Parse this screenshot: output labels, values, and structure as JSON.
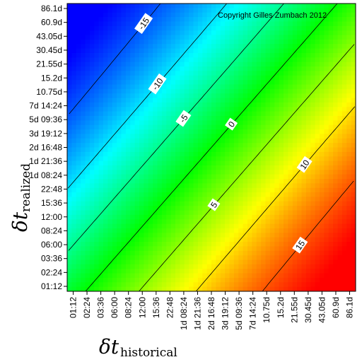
{
  "chart_data": {
    "type": "heatmap",
    "title": "",
    "copyright": "Copyright Gilles Zumbach 2012",
    "xlabel": {
      "symbol": "δt",
      "subscript": "historical"
    },
    "ylabel": {
      "symbol": "δt",
      "subscript": "realized"
    },
    "x_ticks": [
      "01:12",
      "02:24",
      "03:36",
      "06:00",
      "08:24",
      "12:00",
      "15:36",
      "22:48",
      "1d 08:24",
      "1d 21:36",
      "2d 16:48",
      "3d 19:12",
      "5d 09:36",
      "7d 14:24",
      "10.75d",
      "15.2d",
      "21.55d",
      "30.45d",
      "43.05d",
      "60.9d",
      "86.1d"
    ],
    "y_ticks": [
      "01:12",
      "02:24",
      "03:36",
      "06:00",
      "08:24",
      "12:00",
      "15:36",
      "22:48",
      "1d 08:24",
      "1d 21:36",
      "2d 16:48",
      "3d 19:12",
      "5d 09:36",
      "7d 14:24",
      "10.75d",
      "15.2d",
      "21.55d",
      "30.45d",
      "43.05d",
      "60.9d",
      "86.1d"
    ],
    "value_range": [
      -18,
      18
    ],
    "contour_levels": [
      -15,
      -10,
      -5,
      0,
      5,
      10,
      15
    ],
    "contour_labels": [
      "-15",
      "-10",
      "-5",
      "0",
      "5",
      "10",
      "15"
    ],
    "colorscale": [
      "#ff0000",
      "#ffff00",
      "#00ff00",
      "#00ffff",
      "#0000ff"
    ],
    "grid": false,
    "legend": "none"
  }
}
